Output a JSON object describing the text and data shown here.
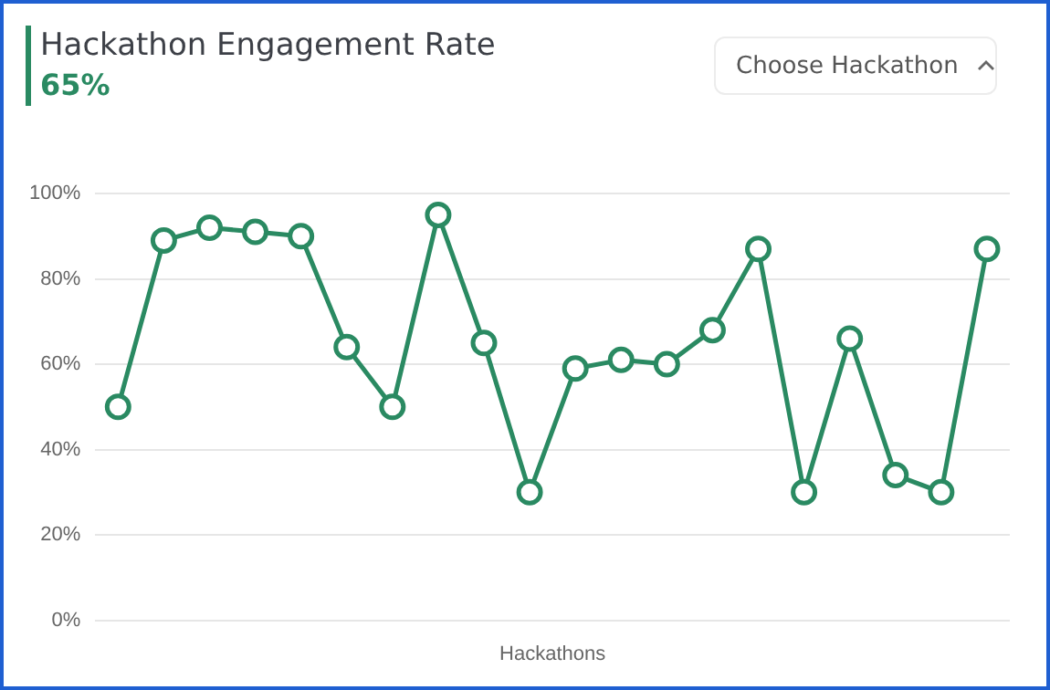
{
  "chart_data": {
    "type": "line",
    "title": "Hackathon Engagement Rate",
    "subtitle": "65%",
    "xlabel": "Hackathons",
    "annotations": [
      "Choose Hackathon"
    ],
    "categories": [
      null,
      null,
      null,
      null,
      null,
      null,
      null,
      null,
      null,
      null,
      null,
      null,
      null,
      null,
      null,
      null,
      null,
      null,
      null,
      null
    ],
    "series": [
      {
        "color": "#2a8a62",
        "values": [
          50,
          89,
          92,
          91,
          90,
          64,
          50,
          95,
          65,
          30,
          59,
          61,
          60,
          68,
          87,
          30,
          66,
          34,
          30,
          87
        ]
      }
    ],
    "ylim": [
      0,
      100
    ],
    "yticks": [
      {
        "value": 0,
        "label": "0%"
      },
      {
        "value": 20,
        "label": "20%"
      },
      {
        "value": 40,
        "label": "40%"
      },
      {
        "value": 60,
        "label": "60%"
      },
      {
        "value": 80,
        "label": "80%"
      },
      {
        "value": 100,
        "label": "100%"
      }
    ],
    "grid": "y",
    "tick_labels": "y",
    "marker": "circle",
    "line_style": "solid"
  }
}
